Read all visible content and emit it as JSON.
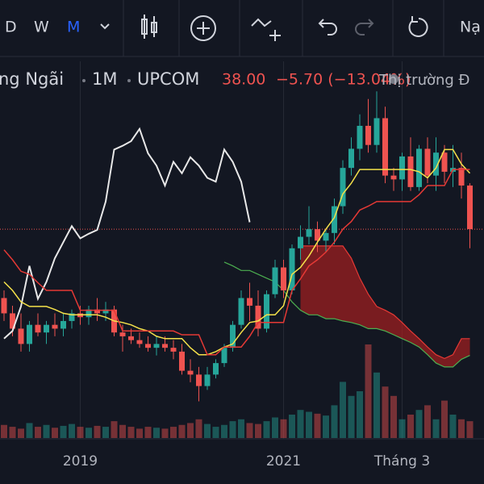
{
  "toolbar": {
    "intervals": [
      "D",
      "W",
      "M"
    ],
    "button": "Nạ"
  },
  "header": {
    "symbol": "ng Ngãi",
    "interval": "1M",
    "exchange": "UPCOM",
    "price": "38.00",
    "change": "−5.70 (−13.04%)",
    "status": "Thị trường Đ"
  },
  "chart_data": {
    "type": "candlestick",
    "categories": [
      null,
      null,
      null,
      null,
      null,
      null,
      null,
      null,
      null,
      "2019",
      null,
      null,
      null,
      null,
      null,
      null,
      null,
      null,
      null,
      null,
      null,
      null,
      null,
      null,
      null,
      null,
      null,
      null,
      null,
      null,
      null,
      null,
      null,
      "2021",
      null,
      null,
      null,
      null,
      null,
      null,
      null,
      null,
      null,
      null,
      null,
      null,
      null,
      "Tháng 3",
      null,
      null,
      null,
      null,
      null,
      null,
      null,
      null
    ],
    "candles": [
      [
        29,
        30,
        26,
        27
      ],
      [
        27,
        28,
        24,
        25
      ],
      [
        25,
        27,
        22,
        23
      ],
      [
        23,
        26,
        22,
        25.5
      ],
      [
        25.5,
        27,
        24,
        24.5
      ],
      [
        24.5,
        26,
        23,
        25.5
      ],
      [
        25.5,
        27,
        24,
        25
      ],
      [
        25,
        27,
        24,
        26
      ],
      [
        26,
        27.5,
        25,
        27
      ],
      [
        27,
        28,
        25.5,
        26.5
      ],
      [
        26.5,
        28,
        25.5,
        27.5
      ],
      [
        27.5,
        29,
        26,
        27
      ],
      [
        27,
        28.5,
        26,
        27.5
      ],
      [
        27.5,
        28,
        24,
        24.5
      ],
      [
        24.5,
        25.5,
        22,
        24
      ],
      [
        24,
        25,
        23,
        23.5
      ],
      [
        23.5,
        24.5,
        22.5,
        23
      ],
      [
        23,
        24,
        22,
        22.5
      ],
      [
        22.5,
        24,
        21.5,
        23
      ],
      [
        23,
        24,
        22,
        22.5
      ],
      [
        22.5,
        23.5,
        21,
        22
      ],
      [
        22,
        23,
        19,
        19.5
      ],
      [
        19.5,
        21,
        18,
        19
      ],
      [
        19,
        20,
        15.5,
        17.5
      ],
      [
        17.5,
        20,
        17,
        19
      ],
      [
        19,
        21,
        18.5,
        20.5
      ],
      [
        20.5,
        23,
        20,
        22.5
      ],
      [
        22.5,
        26,
        22,
        25.5
      ],
      [
        25.5,
        30,
        25,
        29
      ],
      [
        29,
        31,
        26,
        28
      ],
      [
        28,
        30,
        24,
        25
      ],
      [
        25,
        30,
        24.5,
        29.5
      ],
      [
        29.5,
        34,
        29,
        33
      ],
      [
        33,
        34,
        29,
        30
      ],
      [
        30,
        36,
        29.5,
        35.5
      ],
      [
        35.5,
        38.5,
        34,
        37
      ],
      [
        37,
        41,
        36,
        38
      ],
      [
        38,
        39,
        35,
        36.5
      ],
      [
        36.5,
        38,
        35,
        37.5
      ],
      [
        37.5,
        42,
        36,
        41
      ],
      [
        41,
        47,
        40,
        46
      ],
      [
        46,
        50,
        45,
        48.5
      ],
      [
        48.5,
        53,
        47,
        51.5
      ],
      [
        51.5,
        55,
        48,
        49
      ],
      [
        49,
        56,
        48,
        52.5
      ],
      [
        52.5,
        54,
        44,
        45
      ],
      [
        45,
        46,
        43,
        44.5
      ],
      [
        44.5,
        48,
        43,
        47.5
      ],
      [
        47.5,
        50,
        43,
        43.5
      ],
      [
        43.5,
        49,
        43,
        48.5
      ],
      [
        48.5,
        50,
        44,
        45
      ],
      [
        45,
        50,
        43,
        48
      ],
      [
        48,
        49,
        44,
        45.5
      ],
      [
        45.5,
        49,
        43.5,
        46
      ],
      [
        46,
        48,
        42,
        43.7
      ],
      [
        43.7,
        44,
        35.5,
        38
      ]
    ],
    "up_color": "#26a69a",
    "down_color": "#ef5350",
    "volume": [
      14,
      12,
      10,
      16,
      12,
      14,
      11,
      13,
      15,
      12,
      11,
      13,
      12,
      18,
      14,
      12,
      10,
      12,
      11,
      10,
      12,
      14,
      16,
      20,
      15,
      12,
      14,
      18,
      20,
      16,
      15,
      18,
      22,
      20,
      25,
      30,
      28,
      26,
      24,
      35,
      60,
      45,
      50,
      100,
      70,
      55,
      45,
      20,
      25,
      30,
      35,
      20,
      40,
      25,
      20,
      18
    ],
    "volume_lim": [
      0,
      100
    ],
    "ylim": [
      10.5,
      57.4
    ],
    "last_price": 38,
    "lines": [
      {
        "color": "#e8e8e8",
        "values": [
          23.7,
          24.7,
          27.9,
          33.2,
          28.9,
          31.1,
          34.2,
          36.3,
          38.4,
          36.8,
          37.4,
          37.9,
          41.6,
          48.4,
          48.9,
          49.5,
          51.1,
          47.9,
          46.3,
          43.7,
          46.8,
          45.3,
          47.4,
          46.3,
          44.7,
          44.2,
          48.4,
          46.8,
          44.2,
          38.9,
          null,
          null,
          null,
          null,
          null,
          null,
          null,
          null,
          null,
          null,
          null,
          null,
          null,
          null,
          null,
          null,
          null,
          null,
          null,
          null,
          null,
          null,
          null,
          null,
          null,
          null
        ]
      },
      {
        "color": "#f5e14a",
        "values": [
          31.1,
          30,
          28.5,
          27.9,
          27.9,
          27.9,
          27.5,
          27,
          26.8,
          26.8,
          26.8,
          26.8,
          26.5,
          26,
          25.8,
          25.5,
          25,
          24.7,
          24,
          23.7,
          23.7,
          23.7,
          22.5,
          21.6,
          21.6,
          22,
          22.6,
          23,
          24.5,
          25.8,
          26,
          26.8,
          26.8,
          28,
          32.1,
          33,
          34.5,
          36.3,
          38,
          39.5,
          42.6,
          44,
          45.8,
          45.8,
          45.8,
          45.8,
          45.8,
          45.8,
          45.8,
          45.5,
          44.7,
          46,
          48.4,
          48.4,
          46.5,
          45.3
        ]
      },
      {
        "color": "#e53935",
        "values": [
          35.3,
          34,
          32.5,
          32.1,
          31,
          30,
          30,
          30,
          30,
          27.4,
          27.4,
          27.4,
          27.4,
          27.4,
          24.7,
          24.7,
          24.7,
          24.7,
          24.7,
          24.7,
          24.7,
          24.2,
          24.2,
          24.2,
          21.6,
          21.6,
          22.6,
          22.6,
          22.6,
          24,
          25.8,
          25.8,
          25.8,
          25.8,
          30,
          31.5,
          33.2,
          34,
          35,
          36.3,
          38,
          39,
          40.5,
          41,
          41.6,
          41.6,
          41.6,
          41.6,
          41.6,
          42.5,
          43.7,
          43.7,
          43.7,
          45.8,
          45.8,
          45.8
        ]
      }
    ],
    "cloud": [
      {
        "color": "#e53935",
        "values": [
          null,
          null,
          null,
          null,
          null,
          null,
          null,
          null,
          null,
          null,
          null,
          null,
          null,
          null,
          null,
          null,
          null,
          null,
          null,
          null,
          null,
          null,
          null,
          null,
          null,
          null,
          null,
          null,
          null,
          null,
          null,
          null,
          null,
          null,
          null,
          35.8,
          35.8,
          35.8,
          35.8,
          35.8,
          35.8,
          34.2,
          31.6,
          29.5,
          27.9,
          27.4,
          26.8,
          25.8,
          24.7,
          23.7,
          22.6,
          21.6,
          21.1,
          21.6,
          23.7,
          23.7
        ]
      },
      {
        "color": "#4caf50",
        "values": [
          null,
          null,
          null,
          null,
          null,
          null,
          null,
          null,
          null,
          null,
          null,
          null,
          null,
          null,
          null,
          null,
          null,
          null,
          null,
          null,
          null,
          null,
          null,
          null,
          null,
          null,
          33.7,
          33.2,
          32.6,
          32.6,
          32.1,
          31.6,
          31.1,
          30,
          28.5,
          27.4,
          26.8,
          26.8,
          26.3,
          26.3,
          26,
          25.8,
          25.5,
          25,
          25,
          24.7,
          24.2,
          23.7,
          23.2,
          22.6,
          21.6,
          20.5,
          20,
          20,
          21,
          21.5
        ]
      }
    ],
    "cloud_fill": "#a51f1f"
  }
}
